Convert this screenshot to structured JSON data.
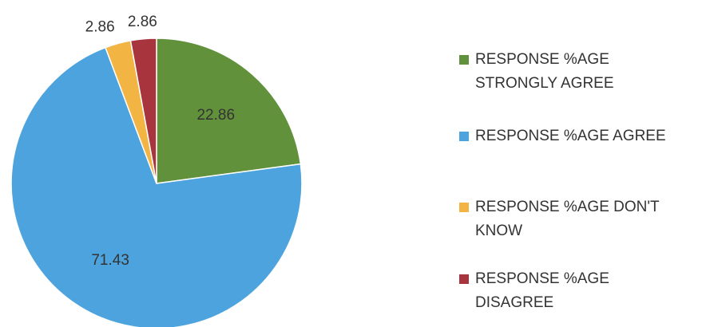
{
  "chart_data": {
    "type": "pie",
    "categories": [
      "RESPONSE %AGE STRONGLY AGREE",
      "RESPONSE %AGE AGREE",
      "RESPONSE %AGE DON'T KNOW",
      "RESPONSE %AGE DISAGREE"
    ],
    "values": [
      22.86,
      71.43,
      2.86,
      2.86
    ],
    "colors": [
      "#62913b",
      "#4da3de",
      "#f2b443",
      "#a8343e"
    ],
    "legend": "right"
  }
}
